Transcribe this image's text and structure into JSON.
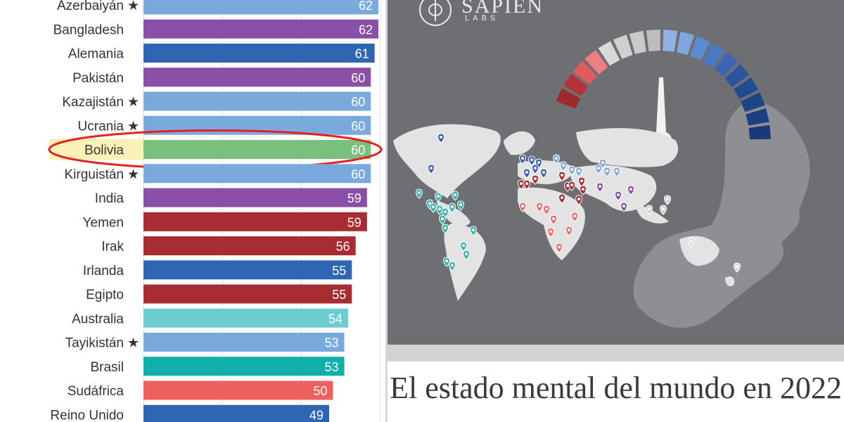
{
  "chart_data": {
    "type": "bar",
    "orientation": "horizontal",
    "categories": [
      "Azerbaiyán",
      "Bangladesh",
      "Alemania",
      "Pakistán",
      "Kazajistán",
      "Ucrania",
      "Bolivia",
      "Kirguistán",
      "India",
      "Yemen",
      "Irak",
      "Irlanda",
      "Egipto",
      "Australia",
      "Tayikistán",
      "Brasil",
      "Sudáfrica",
      "Reino Unido"
    ],
    "values": [
      62,
      62,
      61,
      60,
      60,
      60,
      60,
      60,
      59,
      59,
      56,
      55,
      55,
      54,
      53,
      53,
      50,
      49
    ],
    "starred": [
      true,
      false,
      false,
      false,
      true,
      true,
      false,
      true,
      false,
      false,
      false,
      false,
      false,
      false,
      true,
      false,
      false,
      false
    ],
    "bar_colors": [
      "#7aaadc",
      "#8a4fa6",
      "#2f66b3",
      "#8a4fa6",
      "#7aaadc",
      "#7aaadc",
      "#79c07d",
      "#7aaadc",
      "#8a4fa6",
      "#a82d32",
      "#a82d32",
      "#2f66b3",
      "#a82d32",
      "#6ccdd1",
      "#7aaadc",
      "#12aeaa",
      "#ee6060",
      "#2f66b3"
    ],
    "highlighted": "Bolivia",
    "highlight_color": "#e8201c",
    "xlim": [
      0,
      62
    ],
    "grid": true,
    "star_symbol": "★"
  },
  "poster": {
    "brand_name": "SAPIEN",
    "brand_sub": "LABS",
    "title": "El estado mental del mundo en 2022",
    "gauge_colors": [
      "#9e2a2e",
      "#b53238",
      "#e05a5e",
      "#ee7e80",
      "#d9d9d9",
      "#cfcfcf",
      "#c9c9c9",
      "#bdbdbd",
      "#8fb4e3",
      "#7fa6dd",
      "#5a8bd0",
      "#4a78c4",
      "#3c66b3",
      "#2c55a0",
      "#234b92",
      "#1e4488",
      "#1b3f80",
      "#183a78"
    ],
    "colors": {
      "background": "#6e6f73",
      "map": "#e3e3e3",
      "head": "#8e8f93"
    }
  }
}
